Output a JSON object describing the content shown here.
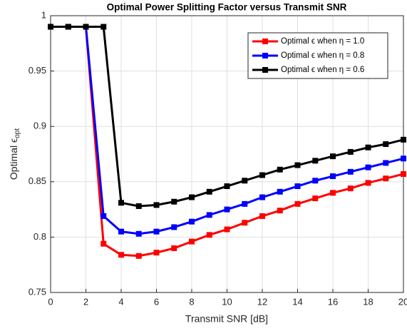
{
  "chart_data": {
    "type": "line",
    "title": "Optimal Power Splitting Factor versus Transmit SNR",
    "xlabel": "Transmit SNR [dB]",
    "ylabel": "Optimal ϵ",
    "ylabel_sub": "opt",
    "x": [
      0,
      1,
      2,
      3,
      4,
      5,
      6,
      7,
      8,
      9,
      10,
      11,
      12,
      13,
      14,
      15,
      16,
      17,
      18,
      19,
      20
    ],
    "series": [
      {
        "name": "Optimal ϵ when η = 1.0",
        "color": "#ff0000",
        "values": [
          0.99,
          0.99,
          0.99,
          0.794,
          0.784,
          0.783,
          0.786,
          0.79,
          0.796,
          0.802,
          0.807,
          0.813,
          0.819,
          0.824,
          0.83,
          0.835,
          0.84,
          0.844,
          0.849,
          0.853,
          0.857
        ]
      },
      {
        "name": "Optimal ϵ when η = 0.8",
        "color": "#0000ff",
        "values": [
          0.99,
          0.99,
          0.99,
          0.819,
          0.805,
          0.803,
          0.805,
          0.809,
          0.814,
          0.82,
          0.825,
          0.83,
          0.836,
          0.841,
          0.846,
          0.851,
          0.855,
          0.859,
          0.863,
          0.867,
          0.871
        ]
      },
      {
        "name": "Optimal ϵ when η = 0.6",
        "color": "#000000",
        "values": [
          0.99,
          0.99,
          0.99,
          0.99,
          0.831,
          0.828,
          0.829,
          0.832,
          0.836,
          0.841,
          0.846,
          0.851,
          0.856,
          0.861,
          0.865,
          0.869,
          0.873,
          0.877,
          0.881,
          0.884,
          0.888
        ]
      }
    ],
    "xlim": [
      0,
      20
    ],
    "xticks": [
      0,
      2,
      4,
      6,
      8,
      10,
      12,
      14,
      16,
      18,
      20
    ],
    "ylim": [
      0.75,
      1
    ],
    "yticks": [
      0.75,
      0.8,
      0.85,
      0.9,
      0.95,
      1
    ],
    "grid": true,
    "legend": "upper right"
  }
}
